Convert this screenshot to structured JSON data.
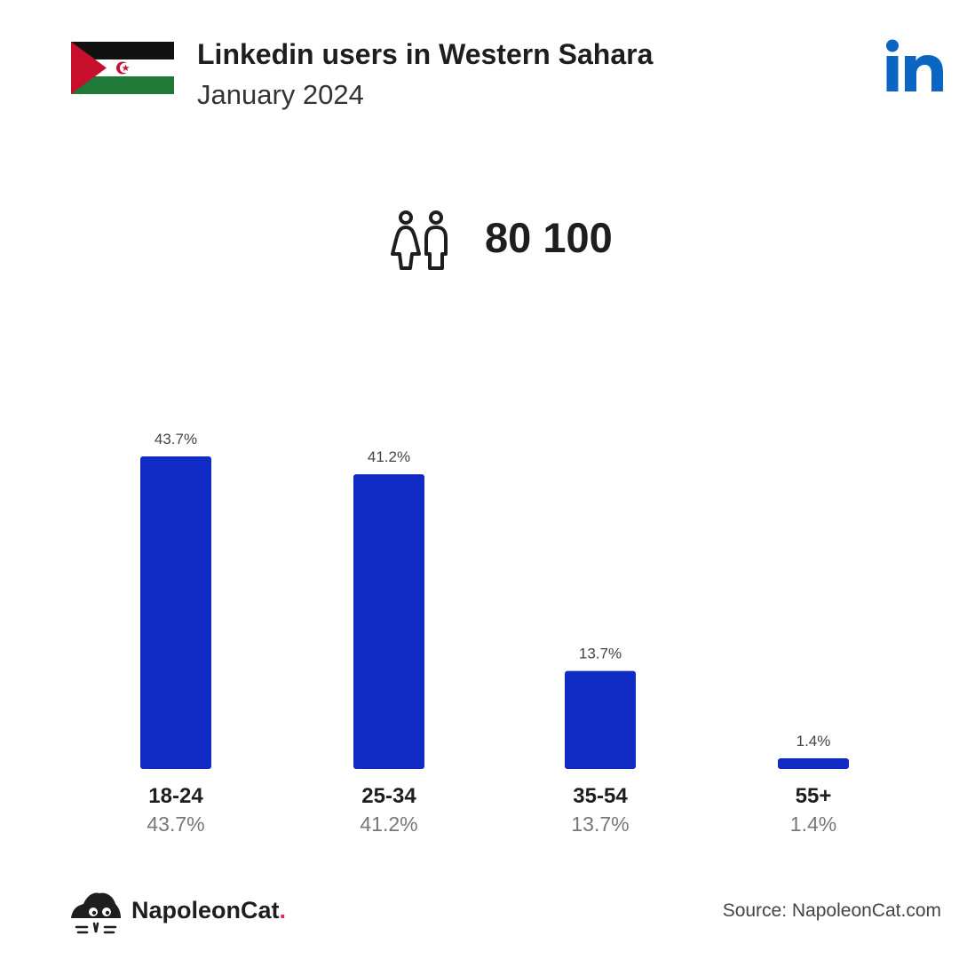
{
  "header": {
    "title": "Linkedin users in Western Sahara",
    "subtitle": "January 2024"
  },
  "icons": {
    "flag": "western-sahara-flag-icon",
    "platform": "linkedin-logo-icon",
    "users": "people-icon",
    "brand": "napoleoncat-logo-icon"
  },
  "colors": {
    "bar": "#102bc3",
    "linkedin": "#0a66c2",
    "brand_dot": "#e0245e"
  },
  "total_users": "80 100",
  "chart_data": {
    "type": "bar",
    "title": "",
    "xlabel": "",
    "ylabel": "",
    "ylim": [
      0,
      43.7
    ],
    "categories": [
      "18-24",
      "25-34",
      "35-54",
      "55+"
    ],
    "values": [
      43.7,
      41.2,
      13.7,
      1.4
    ],
    "value_labels": [
      "43.7%",
      "41.2%",
      "13.7%",
      "1.4%"
    ],
    "grid": false,
    "legend": "none"
  },
  "footer": {
    "brand": "NapoleonCat",
    "brand_dot": ".",
    "source": "Source: NapoleonCat.com"
  }
}
